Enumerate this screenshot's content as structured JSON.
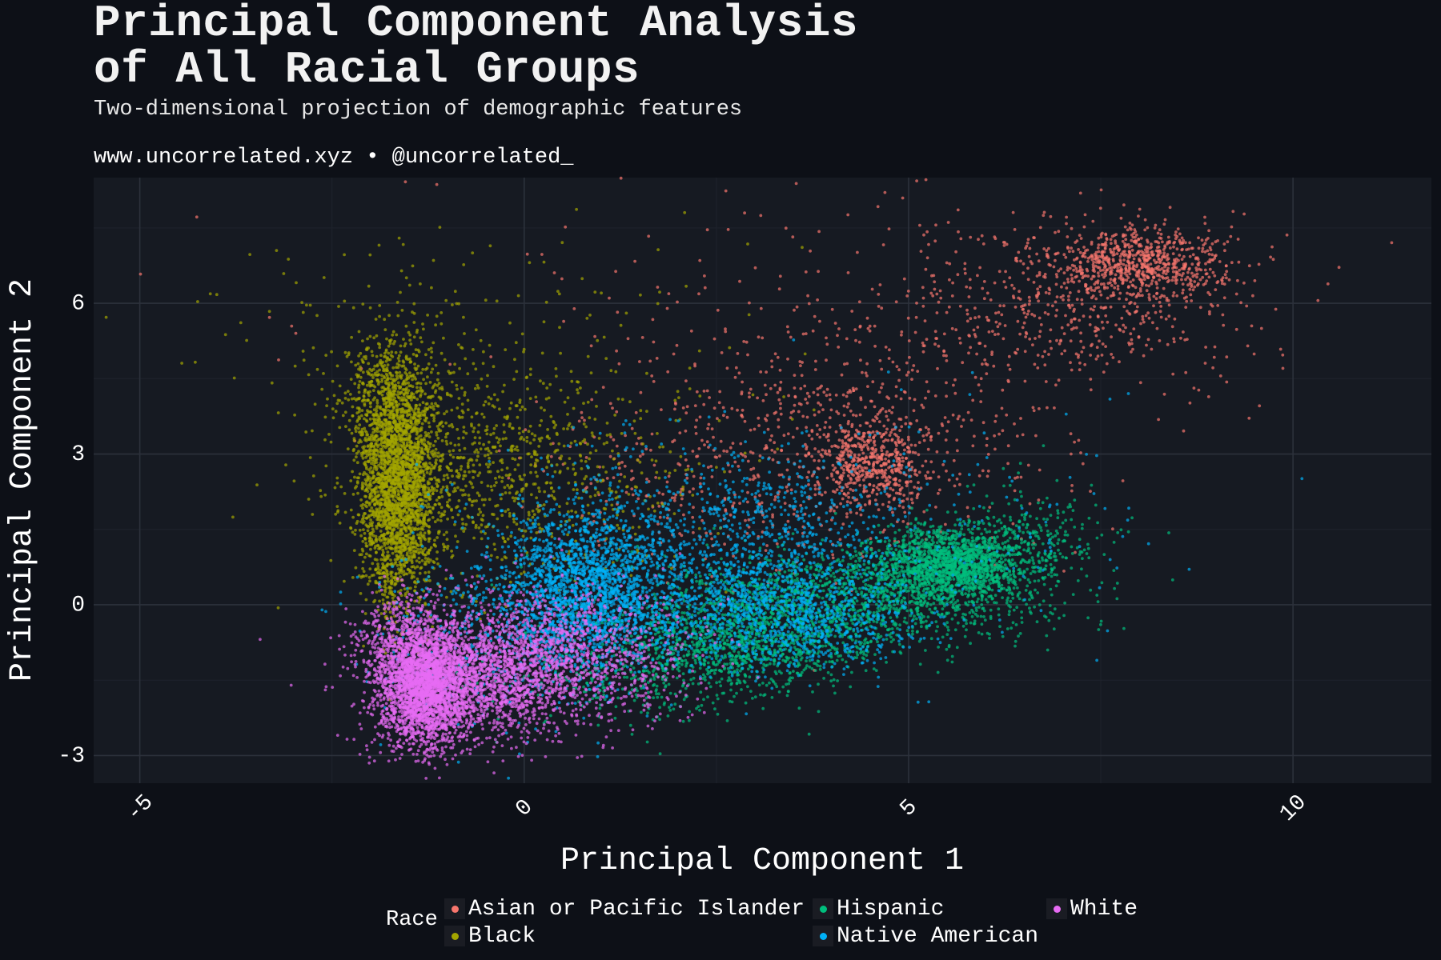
{
  "header": {
    "title_line1": "Principal Component Analysis",
    "title_line2": "of All Racial Groups",
    "subtitle": "Two-dimensional projection of demographic features",
    "caption": "www.uncorrelated.xyz • @uncorrelated_"
  },
  "legend": {
    "title": "Race"
  },
  "chart_data": {
    "type": "scatter",
    "xlabel": "Principal Component 1",
    "ylabel": "Principal Component 2",
    "xlim": [
      -5.6,
      11.8
    ],
    "ylim": [
      -3.55,
      8.5
    ],
    "xticks": [
      -5,
      0,
      5,
      10
    ],
    "yticks": [
      -3,
      0,
      3,
      6
    ],
    "grid": true,
    "legend_position": "bottom",
    "series": [
      {
        "name": "Asian or Pacific Islander",
        "color": "#f8766d",
        "clusters": [
          {
            "center": [
              8.0,
              6.8
            ],
            "spread": [
              0.55,
              0.35
            ],
            "n": 700
          },
          {
            "center": [
              7.2,
              6.0
            ],
            "spread": [
              1.1,
              0.8
            ],
            "n": 500
          },
          {
            "center": [
              4.5,
              2.8
            ],
            "spread": [
              0.35,
              0.45
            ],
            "n": 450
          },
          {
            "center": [
              4.3,
              3.5
            ],
            "spread": [
              1.4,
              1.2
            ],
            "n": 650
          },
          {
            "center": [
              2.5,
              2.5
            ],
            "spread": [
              1.3,
              0.9
            ],
            "n": 250
          },
          {
            "center": [
              3.5,
              6.5
            ],
            "spread": [
              3.5,
              1.3
            ],
            "n": 120
          }
        ]
      },
      {
        "name": "Black",
        "color": "#a3a500",
        "clusters": [
          {
            "center": [
              -1.65,
              2.4
            ],
            "spread": [
              0.25,
              1.2
            ],
            "n": 2600
          },
          {
            "center": [
              -1.8,
              4.2
            ],
            "spread": [
              0.35,
              0.6
            ],
            "n": 350
          },
          {
            "center": [
              -0.8,
              2.8
            ],
            "spread": [
              0.9,
              1.1
            ],
            "n": 700
          },
          {
            "center": [
              0.5,
              2.5
            ],
            "spread": [
              1.0,
              1.0
            ],
            "n": 300
          },
          {
            "center": [
              -1.0,
              5.5
            ],
            "spread": [
              2.0,
              1.1
            ],
            "n": 120
          }
        ]
      },
      {
        "name": "Hispanic",
        "color": "#00bf7d",
        "clusters": [
          {
            "center": [
              5.5,
              0.8
            ],
            "spread": [
              0.5,
              0.35
            ],
            "n": 1600
          },
          {
            "center": [
              4.0,
              0.1
            ],
            "spread": [
              1.4,
              0.45
            ],
            "n": 1400
          },
          {
            "center": [
              2.8,
              -0.8
            ],
            "spread": [
              0.9,
              0.4
            ],
            "n": 900
          },
          {
            "center": [
              6.5,
              1.3
            ],
            "spread": [
              0.6,
              0.5
            ],
            "n": 300
          },
          {
            "center": [
              1.5,
              -1.5
            ],
            "spread": [
              1.0,
              0.45
            ],
            "n": 350
          }
        ]
      },
      {
        "name": "Native American",
        "color": "#00b0f6",
        "clusters": [
          {
            "center": [
              0.8,
              0.3
            ],
            "spread": [
              0.55,
              0.8
            ],
            "n": 1800
          },
          {
            "center": [
              2.5,
              0.9
            ],
            "spread": [
              1.3,
              1.0
            ],
            "n": 1300
          },
          {
            "center": [
              3.5,
              -0.3
            ],
            "spread": [
              0.8,
              0.5
            ],
            "n": 800
          },
          {
            "center": [
              -0.2,
              -0.5
            ],
            "spread": [
              0.9,
              0.9
            ],
            "n": 500
          },
          {
            "center": [
              4.5,
              1.5
            ],
            "spread": [
              1.8,
              1.2
            ],
            "n": 250
          }
        ]
      },
      {
        "name": "White",
        "color": "#e76bf3",
        "clusters": [
          {
            "center": [
              -1.3,
              -1.6
            ],
            "spread": [
              0.3,
              0.6
            ],
            "n": 2400
          },
          {
            "center": [
              -0.6,
              -1.4
            ],
            "spread": [
              0.7,
              0.65
            ],
            "n": 1700
          },
          {
            "center": [
              0.6,
              -1.0
            ],
            "spread": [
              0.8,
              0.7
            ],
            "n": 1000
          },
          {
            "center": [
              -1.6,
              -0.6
            ],
            "spread": [
              0.3,
              0.45
            ],
            "n": 300
          }
        ]
      }
    ]
  }
}
